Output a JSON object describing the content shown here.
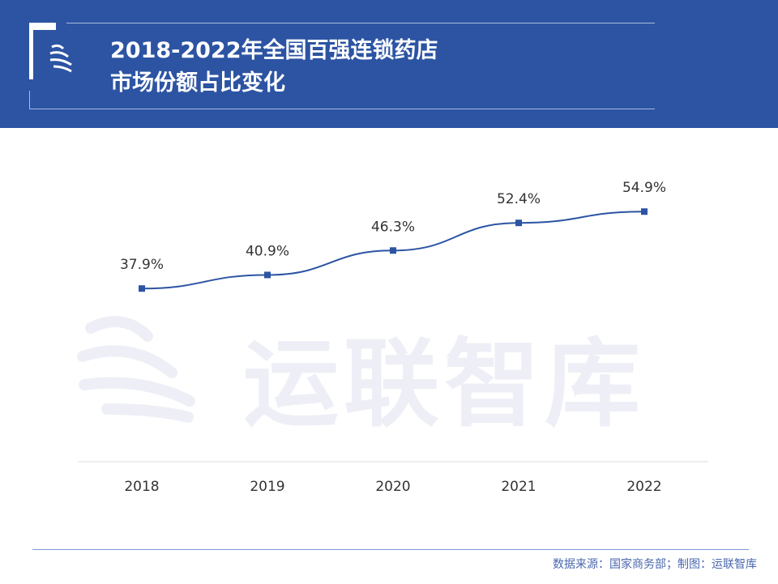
{
  "header": {
    "title_line1": "2018-2022年全国百强连锁药店",
    "title_line2": "市场份额占比变化"
  },
  "watermark": "运联智库",
  "footer": {
    "source": "数据来源：国家商务部；制图：运联智库"
  },
  "colors": {
    "header_bg": "#2c54a3",
    "line": "#2c54a3"
  },
  "chart_data": {
    "type": "line",
    "categories": [
      "2018",
      "2019",
      "2020",
      "2021",
      "2022"
    ],
    "values": [
      37.9,
      40.9,
      46.3,
      52.4,
      54.9
    ],
    "labels": [
      "37.9%",
      "40.9%",
      "46.3%",
      "52.4%",
      "54.9%"
    ],
    "unit": "%",
    "grid": false,
    "legend": "none"
  }
}
